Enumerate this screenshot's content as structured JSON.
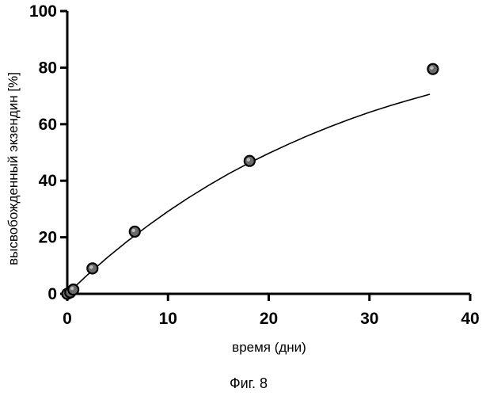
{
  "chart_data": {
    "type": "scatter",
    "title": "",
    "xlabel": "время (дни)",
    "ylabel": "высвобожденный экзендин [%]",
    "xlim": [
      0,
      40
    ],
    "ylim": [
      0,
      100
    ],
    "x_ticks": [
      "0",
      "10",
      "20",
      "30",
      "40"
    ],
    "y_ticks": [
      "0",
      "20",
      "40",
      "60",
      "80",
      "100"
    ],
    "grid": false,
    "legend": "none",
    "series": [
      {
        "kind": "points",
        "x": [
          0,
          0.3,
          0.6,
          2.5,
          6.7,
          18.1,
          36.3
        ],
        "y": [
          0,
          0.5,
          1.5,
          9,
          22,
          47,
          79.5
        ],
        "color": "#000000"
      },
      {
        "kind": "fitted-curve",
        "x": [
          0,
          2,
          4,
          6,
          8,
          10,
          12,
          14,
          16,
          18,
          20,
          22,
          24,
          26,
          28,
          30,
          32,
          34,
          36
        ],
        "y": [
          0,
          6.7,
          12.9,
          18.7,
          24.1,
          29.2,
          33.9,
          38.3,
          42.4,
          46.2,
          49.7,
          53.0,
          56.1,
          59.0,
          61.7,
          64.2,
          66.5,
          68.6,
          70.6
        ],
        "color": "#000000"
      }
    ],
    "caption": "Фиг. 8"
  }
}
